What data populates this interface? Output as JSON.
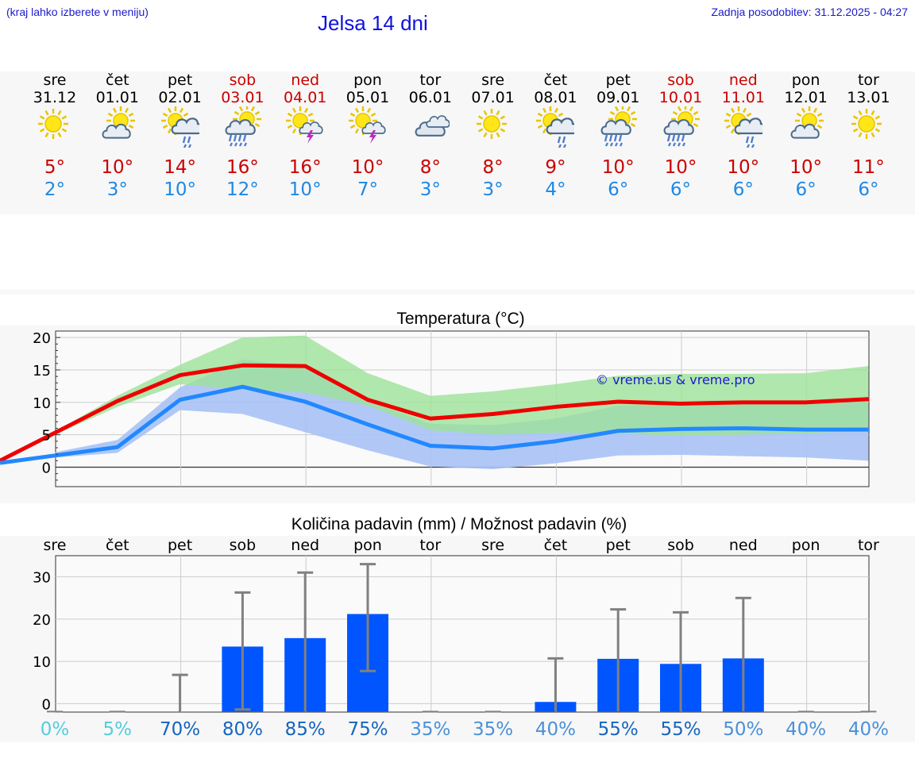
{
  "header": {
    "hint": "(kraj lahko izberete v meniju)",
    "title": "Jelsa 14 dni",
    "updated": "Zadnja posodobitev: 31.12.2025 - 04:27"
  },
  "colors": {
    "max_temp": "#ee0000",
    "min_temp": "#2288ff",
    "band_green": "#9ee29a",
    "band_blue": "#a9c2f5",
    "bar": "#0055ff",
    "errbar": "#808080"
  },
  "days": [
    {
      "name": "sre",
      "date": "31.12",
      "weekend": false,
      "icon": "sun-icon",
      "max": "5°",
      "min": "2°"
    },
    {
      "name": "čet",
      "date": "01.01",
      "weekend": false,
      "icon": "sun-cloud-icon",
      "max": "10°",
      "min": "3°"
    },
    {
      "name": "pet",
      "date": "02.01",
      "weekend": false,
      "icon": "sun-cloud-rain-icon",
      "max": "14°",
      "min": "10°"
    },
    {
      "name": "sob",
      "date": "03.01",
      "weekend": true,
      "icon": "sun-cloud-heavy-rain-icon",
      "max": "16°",
      "min": "12°"
    },
    {
      "name": "ned",
      "date": "04.01",
      "weekend": true,
      "icon": "sun-thunder-icon",
      "max": "16°",
      "min": "10°"
    },
    {
      "name": "pon",
      "date": "05.01",
      "weekend": false,
      "icon": "sun-thunder-icon",
      "max": "10°",
      "min": "7°"
    },
    {
      "name": "tor",
      "date": "06.01",
      "weekend": false,
      "icon": "cloud-icon",
      "max": "8°",
      "min": "3°"
    },
    {
      "name": "sre",
      "date": "07.01",
      "weekend": false,
      "icon": "sun-icon",
      "max": "8°",
      "min": "3°"
    },
    {
      "name": "čet",
      "date": "08.01",
      "weekend": false,
      "icon": "sun-cloud-rain-icon",
      "max": "9°",
      "min": "4°"
    },
    {
      "name": "pet",
      "date": "09.01",
      "weekend": false,
      "icon": "sun-cloud-heavy-rain-icon",
      "max": "10°",
      "min": "6°"
    },
    {
      "name": "sob",
      "date": "10.01",
      "weekend": true,
      "icon": "sun-cloud-heavy-rain-icon",
      "max": "10°",
      "min": "6°"
    },
    {
      "name": "ned",
      "date": "11.01",
      "weekend": true,
      "icon": "sun-cloud-rain-icon",
      "max": "10°",
      "min": "6°"
    },
    {
      "name": "pon",
      "date": "12.01",
      "weekend": false,
      "icon": "sun-cloud-icon",
      "max": "10°",
      "min": "6°"
    },
    {
      "name": "tor",
      "date": "13.01",
      "weekend": false,
      "icon": "sun-icon",
      "max": "11°",
      "min": "6°"
    }
  ],
  "chart_data": [
    {
      "type": "line",
      "title": "Temperatura (°C)",
      "watermark": "© vreme.us & vreme.pro",
      "x": [
        "sre",
        "čet",
        "pet",
        "sob",
        "ned",
        "pon",
        "tor",
        "sre",
        "čet",
        "pet",
        "sob",
        "ned",
        "pon",
        "tor"
      ],
      "ylim": [
        -3,
        21
      ],
      "yticks": [
        0,
        5,
        10,
        15,
        20
      ],
      "series": [
        {
          "name": "max",
          "values": [
            5.3,
            10.2,
            14.2,
            15.7,
            15.6,
            10.4,
            7.5,
            8.2,
            9.3,
            10.1,
            9.8,
            10.0,
            10.0,
            10.5
          ]
        },
        {
          "name": "min",
          "values": [
            1.8,
            3.1,
            10.4,
            12.4,
            10.1,
            6.6,
            3.3,
            2.9,
            4.0,
            5.6,
            5.9,
            6.0,
            5.8,
            5.8
          ]
        }
      ],
      "max_band": {
        "upper": [
          5.5,
          11.0,
          15.8,
          20.0,
          20.3,
          14.5,
          11.0,
          11.7,
          12.8,
          14.1,
          14.4,
          14.4,
          14.5,
          15.6
        ],
        "lower": [
          5.0,
          9.3,
          12.8,
          12.0,
          11.5,
          9.5,
          5.7,
          5.0,
          5.3,
          5.2,
          4.8,
          5.0,
          5.2,
          5.7
        ]
      },
      "min_band": {
        "upper": [
          2.3,
          4.2,
          12.3,
          16.6,
          15.4,
          10.2,
          6.7,
          6.5,
          7.5,
          9.5,
          9.7,
          10.3,
          10.2,
          10.3
        ],
        "lower": [
          1.5,
          2.2,
          8.8,
          8.2,
          5.4,
          2.6,
          0.1,
          -0.3,
          0.6,
          1.8,
          1.9,
          1.7,
          1.5,
          1.0
        ]
      }
    },
    {
      "type": "bar",
      "title": "Količina padavin (mm) / Možnost padavin (%)",
      "categories": [
        "sre",
        "čet",
        "pet",
        "sob",
        "ned",
        "pon",
        "tor",
        "sre",
        "čet",
        "pet",
        "sob",
        "ned",
        "pon",
        "tor"
      ],
      "values": [
        0,
        0,
        0,
        13.5,
        15.5,
        21.2,
        0,
        0,
        0.4,
        10.6,
        9.4,
        10.7,
        0,
        0
      ],
      "err_high": [
        0,
        0,
        6.8,
        26.3,
        31.0,
        33.0,
        0,
        0,
        10.7,
        22.3,
        21.6,
        25.0,
        0,
        0
      ],
      "err_low": [
        0,
        0,
        0,
        0.5,
        0,
        9.6,
        0,
        0,
        0,
        0,
        0,
        0,
        0,
        0
      ],
      "ylim": [
        -2,
        35
      ],
      "yticks": [
        0,
        10,
        20,
        30
      ],
      "probabilities": [
        "0%",
        "5%",
        "70%",
        "80%",
        "85%",
        "75%",
        "35%",
        "35%",
        "40%",
        "55%",
        "55%",
        "50%",
        "40%",
        "40%"
      ],
      "prob_colors": [
        "#55ccdd",
        "#55ccdd",
        "#1565c0",
        "#1565c0",
        "#1565c0",
        "#1565c0",
        "#4a90d9",
        "#4a90d9",
        "#4a90d9",
        "#1565c0",
        "#1565c0",
        "#4a90d9",
        "#4a90d9",
        "#4a90d9"
      ]
    }
  ]
}
